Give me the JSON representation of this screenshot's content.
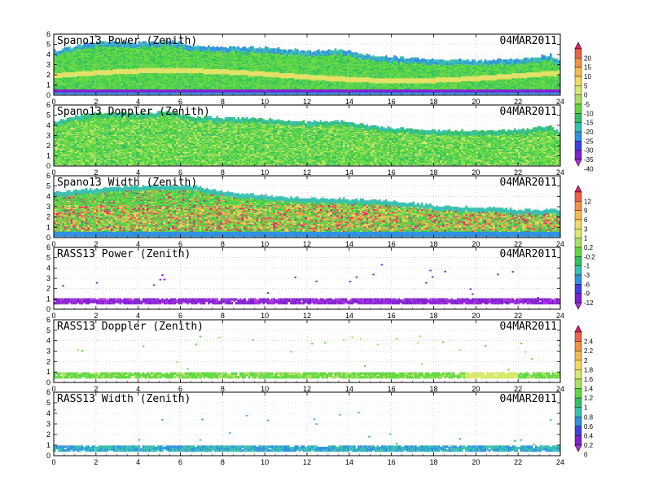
{
  "chart_data": [
    {
      "type": "heatmap",
      "title": "Spano13 Power (Zenith)",
      "date": "04MAR2011",
      "xlim": [
        0,
        24
      ],
      "ylim": [
        0,
        6
      ],
      "x_ticks": [
        "0",
        "2",
        "4",
        "6",
        "8",
        "10",
        "12",
        "14",
        "16",
        "18",
        "20",
        "22",
        "24"
      ],
      "y_ticks": [
        "0",
        "1",
        "2",
        "3",
        "4",
        "5",
        "6"
      ],
      "colorbar": "cb_power",
      "pattern": "power",
      "top_height_profile": [
        [
          0,
          4.2
        ],
        [
          0.8,
          4.6
        ],
        [
          1.5,
          5.0
        ],
        [
          2.5,
          5.1
        ],
        [
          4,
          5.0
        ],
        [
          5.5,
          5.2
        ],
        [
          6.5,
          4.7
        ],
        [
          8,
          4.6
        ],
        [
          10,
          4.5
        ],
        [
          12,
          4.2
        ],
        [
          13.5,
          4.3
        ],
        [
          15,
          3.8
        ],
        [
          16,
          3.6
        ],
        [
          18,
          3.3
        ],
        [
          20,
          3.3
        ],
        [
          22,
          3.4
        ],
        [
          23.5,
          3.8
        ],
        [
          24,
          3.1
        ]
      ]
    },
    {
      "type": "heatmap",
      "title": "Spano13 Doppler (Zenith)",
      "date": "04MAR2011",
      "xlim": [
        0,
        24
      ],
      "ylim": [
        0,
        6
      ],
      "x_ticks": [
        "0",
        "2",
        "4",
        "6",
        "8",
        "10",
        "12",
        "14",
        "16",
        "18",
        "20",
        "22",
        "24"
      ],
      "y_ticks": [
        "0",
        "1",
        "2",
        "3",
        "4",
        "5",
        "6"
      ],
      "colorbar": "cb_power",
      "pattern": "doppler",
      "top_height_profile": [
        [
          0,
          4.2
        ],
        [
          0.8,
          4.6
        ],
        [
          1.5,
          5.0
        ],
        [
          2.5,
          5.1
        ],
        [
          4,
          5.0
        ],
        [
          5.5,
          5.2
        ],
        [
          6.5,
          4.7
        ],
        [
          8,
          4.6
        ],
        [
          10,
          4.5
        ],
        [
          12,
          4.2
        ],
        [
          13.5,
          4.3
        ],
        [
          15,
          3.8
        ],
        [
          16,
          3.6
        ],
        [
          18,
          3.3
        ],
        [
          20,
          3.3
        ],
        [
          22,
          3.4
        ],
        [
          23.5,
          3.8
        ],
        [
          24,
          3.1
        ]
      ]
    },
    {
      "type": "heatmap",
      "title": "Spano13 Width (Zenith)",
      "date": "04MAR2011",
      "xlim": [
        0,
        24
      ],
      "ylim": [
        0,
        6
      ],
      "x_ticks": [
        "0",
        "2",
        "4",
        "6",
        "8",
        "10",
        "12",
        "14",
        "16",
        "18",
        "20",
        "22",
        "24"
      ],
      "y_ticks": [
        "0",
        "1",
        "2",
        "3",
        "4",
        "5",
        "6"
      ],
      "colorbar": "cb_width",
      "pattern": "width",
      "top_height_profile": [
        [
          0,
          4.3
        ],
        [
          1.5,
          4.5
        ],
        [
          3,
          4.8
        ],
        [
          5,
          4.9
        ],
        [
          6.5,
          4.9
        ],
        [
          8,
          4.3
        ],
        [
          10,
          3.9
        ],
        [
          12,
          3.7
        ],
        [
          14,
          3.6
        ],
        [
          16,
          3.4
        ],
        [
          18,
          3.0
        ],
        [
          20,
          2.8
        ],
        [
          22,
          2.6
        ],
        [
          24,
          2.5
        ]
      ]
    },
    {
      "type": "heatmap",
      "title": "RASS13 Power (Zenith)",
      "date": "04MAR2011",
      "xlim": [
        0,
        24
      ],
      "ylim": [
        0,
        6
      ],
      "x_ticks": [
        "0",
        "2",
        "4",
        "6",
        "8",
        "10",
        "12",
        "14",
        "16",
        "18",
        "20",
        "22",
        "24"
      ],
      "y_ticks": [
        "0",
        "1",
        "2",
        "3",
        "4",
        "5",
        "6"
      ],
      "colorbar": "cb_width",
      "pattern": "rass_power",
      "band_height": [
        0.5,
        0.9
      ]
    },
    {
      "type": "heatmap",
      "title": "RASS13 Doppler (Zenith)",
      "date": "04MAR2011",
      "xlim": [
        0,
        24
      ],
      "ylim": [
        0,
        6
      ],
      "x_ticks": [
        "0",
        "2",
        "4",
        "6",
        "8",
        "10",
        "12",
        "14",
        "16",
        "18",
        "20",
        "22",
        "24"
      ],
      "y_ticks": [
        "0",
        "1",
        "2",
        "3",
        "4",
        "5",
        "6"
      ],
      "colorbar": "cb_doppler",
      "pattern": "rass_doppler",
      "band_height": [
        0.4,
        0.8
      ]
    },
    {
      "type": "heatmap",
      "title": "RASS13 Width (Zenith)",
      "date": "04MAR2011",
      "xlim": [
        0,
        24
      ],
      "ylim": [
        0,
        6
      ],
      "x_ticks": [
        "0",
        "2",
        "4",
        "6",
        "8",
        "10",
        "12",
        "14",
        "16",
        "18",
        "20",
        "22",
        "24"
      ],
      "y_ticks": [
        "0",
        "1",
        "2",
        "3",
        "4",
        "5",
        "6"
      ],
      "colorbar": "cb_doppler",
      "pattern": "rass_width",
      "band_height": [
        0.4,
        0.8
      ]
    }
  ],
  "colorbars": {
    "cb_power": {
      "labels": [
        "20",
        "15",
        "10",
        "5",
        "0",
        "-5",
        "-10",
        "-15",
        "-20",
        "-25",
        "-30",
        "-35",
        "-40"
      ],
      "colors": [
        "#e8206a",
        "#f0604a",
        "#f59040",
        "#f8b850",
        "#f5d860",
        "#d8e868",
        "#a8e060",
        "#60d840",
        "#30c060",
        "#38c0b0",
        "#3090e0",
        "#4040e0",
        "#8020d0",
        "#b030e0"
      ]
    },
    "cb_width": {
      "labels": [
        "12",
        "9",
        "6",
        "3",
        "1",
        "0.2",
        "-0.2",
        "-1",
        "-3",
        "-6",
        "-9",
        "-12"
      ],
      "colors": [
        "#e8206a",
        "#f0604a",
        "#f59040",
        "#f8b850",
        "#f5d860",
        "#d8e868",
        "#a8e060",
        "#60d840",
        "#30c060",
        "#38c0b0",
        "#3090e0",
        "#4040e0",
        "#8020d0",
        "#b030e0"
      ]
    },
    "cb_doppler": {
      "labels": [
        "2.4",
        "2.2",
        "2",
        "1.8",
        "1.6",
        "1.4",
        "1.2",
        "1",
        "0.8",
        "0.6",
        "0.4",
        "0.2",
        "0"
      ],
      "colors": [
        "#e8206a",
        "#f0604a",
        "#f59040",
        "#f8b850",
        "#f5d860",
        "#d8e868",
        "#a8e060",
        "#60d840",
        "#30c060",
        "#38c0b0",
        "#3090e0",
        "#4040e0",
        "#8020d0",
        "#b030e0"
      ]
    }
  }
}
